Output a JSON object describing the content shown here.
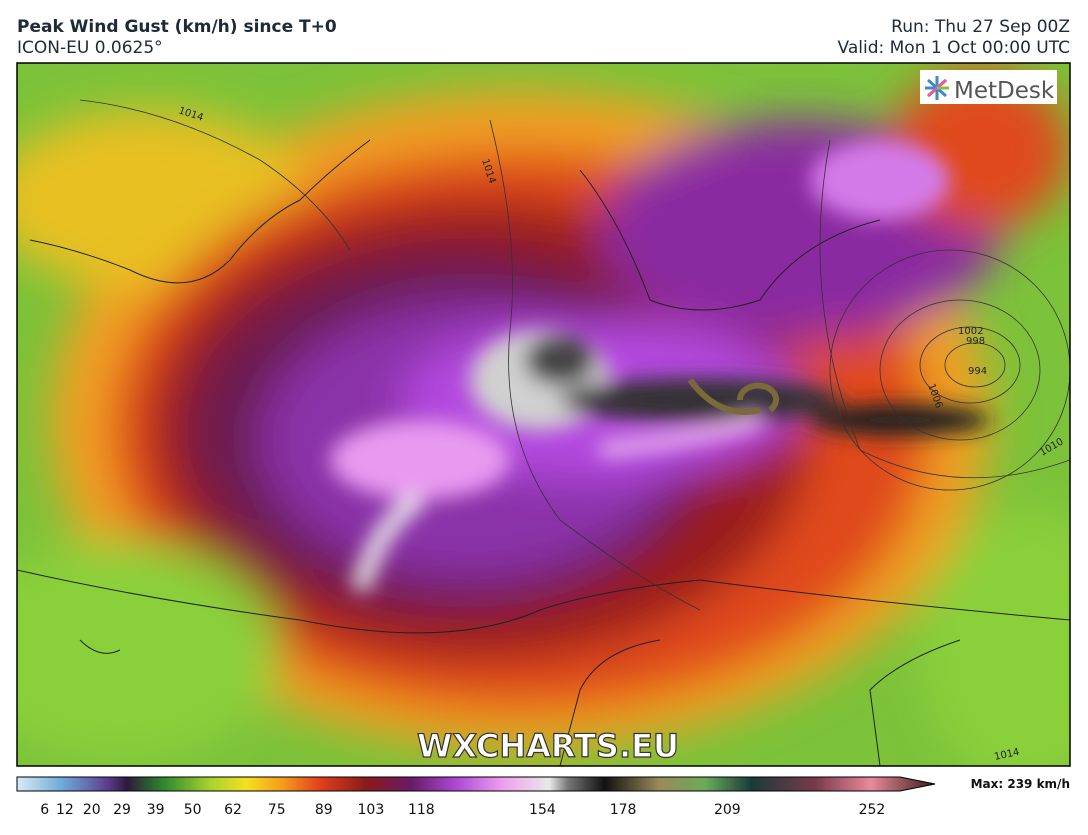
{
  "header": {
    "title": "Peak Wind Gust (km/h) since T+0",
    "model": "ICON-EU 0.0625°",
    "run": "Run: Thu 27 Sep 00Z",
    "valid": "Valid: Mon 1 Oct 00:00 UTC"
  },
  "map": {
    "logo": "MetDesk",
    "watermark": "WXCHARTS.EU",
    "isobar_labels": [
      "1014",
      "1014",
      "1002",
      "998",
      "994",
      "1006",
      "1010",
      "1014"
    ]
  },
  "legend": {
    "ticks": [
      6,
      12,
      20,
      29,
      39,
      50,
      62,
      75,
      89,
      103,
      118,
      154,
      178,
      209,
      252
    ],
    "max_label": "Max: 239 km/h"
  }
}
